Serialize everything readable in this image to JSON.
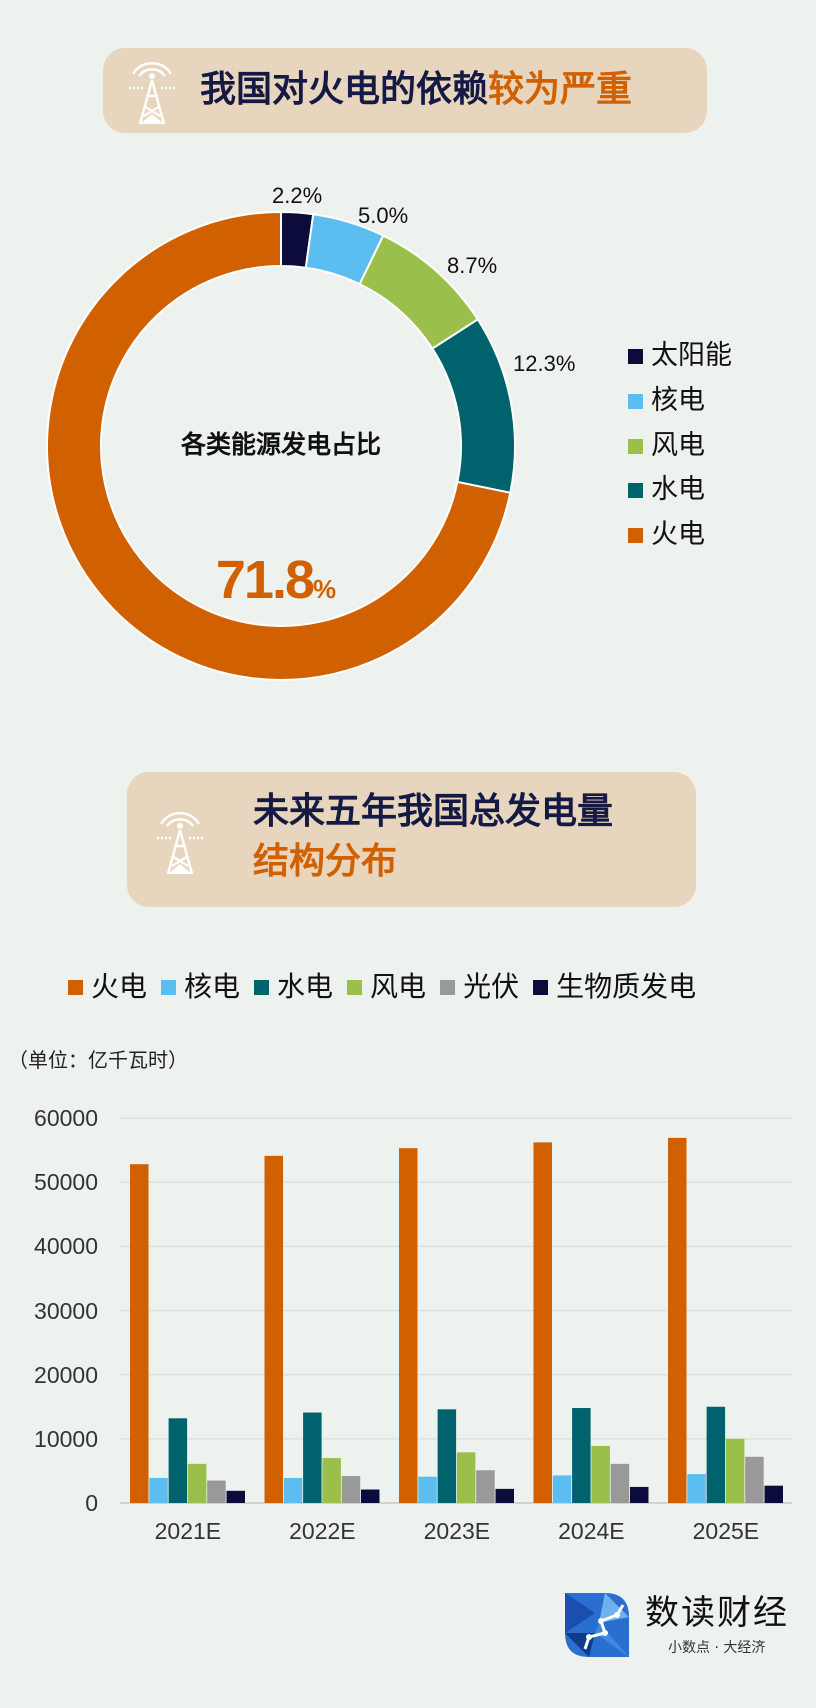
{
  "section1": {
    "title_dark": "我国对火电的依赖",
    "title_accent": "较为严重",
    "icon": "power-tower-icon"
  },
  "section2": {
    "title_line1": "未来五年我国总发电量",
    "title_line2": "结构分布",
    "icon": "power-tower-icon"
  },
  "chart_data": [
    {
      "type": "pie",
      "variant": "donut",
      "title": "各类能源发电占比",
      "slices": [
        {
          "name": "太阳能",
          "value": 2.2,
          "label": "2.2%",
          "color": "#0b0c3c"
        },
        {
          "name": "核电",
          "value": 5.0,
          "label": "5.0%",
          "color": "#5bbdf0"
        },
        {
          "name": "风电",
          "value": 8.7,
          "label": "8.7%",
          "color": "#9bbf4b"
        },
        {
          "name": "水电",
          "value": 12.3,
          "label": "12.3%",
          "color": "#00626c"
        },
        {
          "name": "火电",
          "value": 71.8,
          "label": "71.8",
          "label_unit": "%",
          "color": "#d06000"
        }
      ],
      "legend": [
        "太阳能",
        "核电",
        "风电",
        "水电",
        "火电"
      ],
      "legend_placement": "right"
    },
    {
      "type": "bar",
      "unit_label": "（单位：亿千瓦时）",
      "categories": [
        "2021E",
        "2022E",
        "2023E",
        "2024E",
        "2025E"
      ],
      "series": [
        {
          "name": "火电",
          "color": "#d06000",
          "values": [
            52800,
            54100,
            55300,
            56200,
            56900
          ]
        },
        {
          "name": "核电",
          "color": "#5bbdf0",
          "values": [
            3900,
            3900,
            4100,
            4300,
            4500
          ]
        },
        {
          "name": "水电",
          "color": "#00626c",
          "values": [
            13200,
            14100,
            14600,
            14800,
            15000
          ]
        },
        {
          "name": "风电",
          "color": "#9bbf4b",
          "values": [
            6100,
            7000,
            7900,
            8900,
            10000
          ]
        },
        {
          "name": "光伏",
          "color": "#999999",
          "values": [
            3500,
            4200,
            5100,
            6100,
            7200
          ]
        },
        {
          "name": "生物质发电",
          "color": "#0b0c3c",
          "values": [
            1900,
            2100,
            2200,
            2500,
            2700
          ]
        }
      ],
      "ylim": [
        0,
        60000
      ],
      "yticks": [
        "0",
        "10000",
        "20000",
        "30000",
        "40000",
        "50000",
        "60000"
      ],
      "grid": true,
      "legend_placement": "top"
    }
  ],
  "footer": {
    "brand": "数读财经",
    "slogan": "小数点 · 大经济",
    "logo_icon": "polygon-leaf-logo"
  }
}
